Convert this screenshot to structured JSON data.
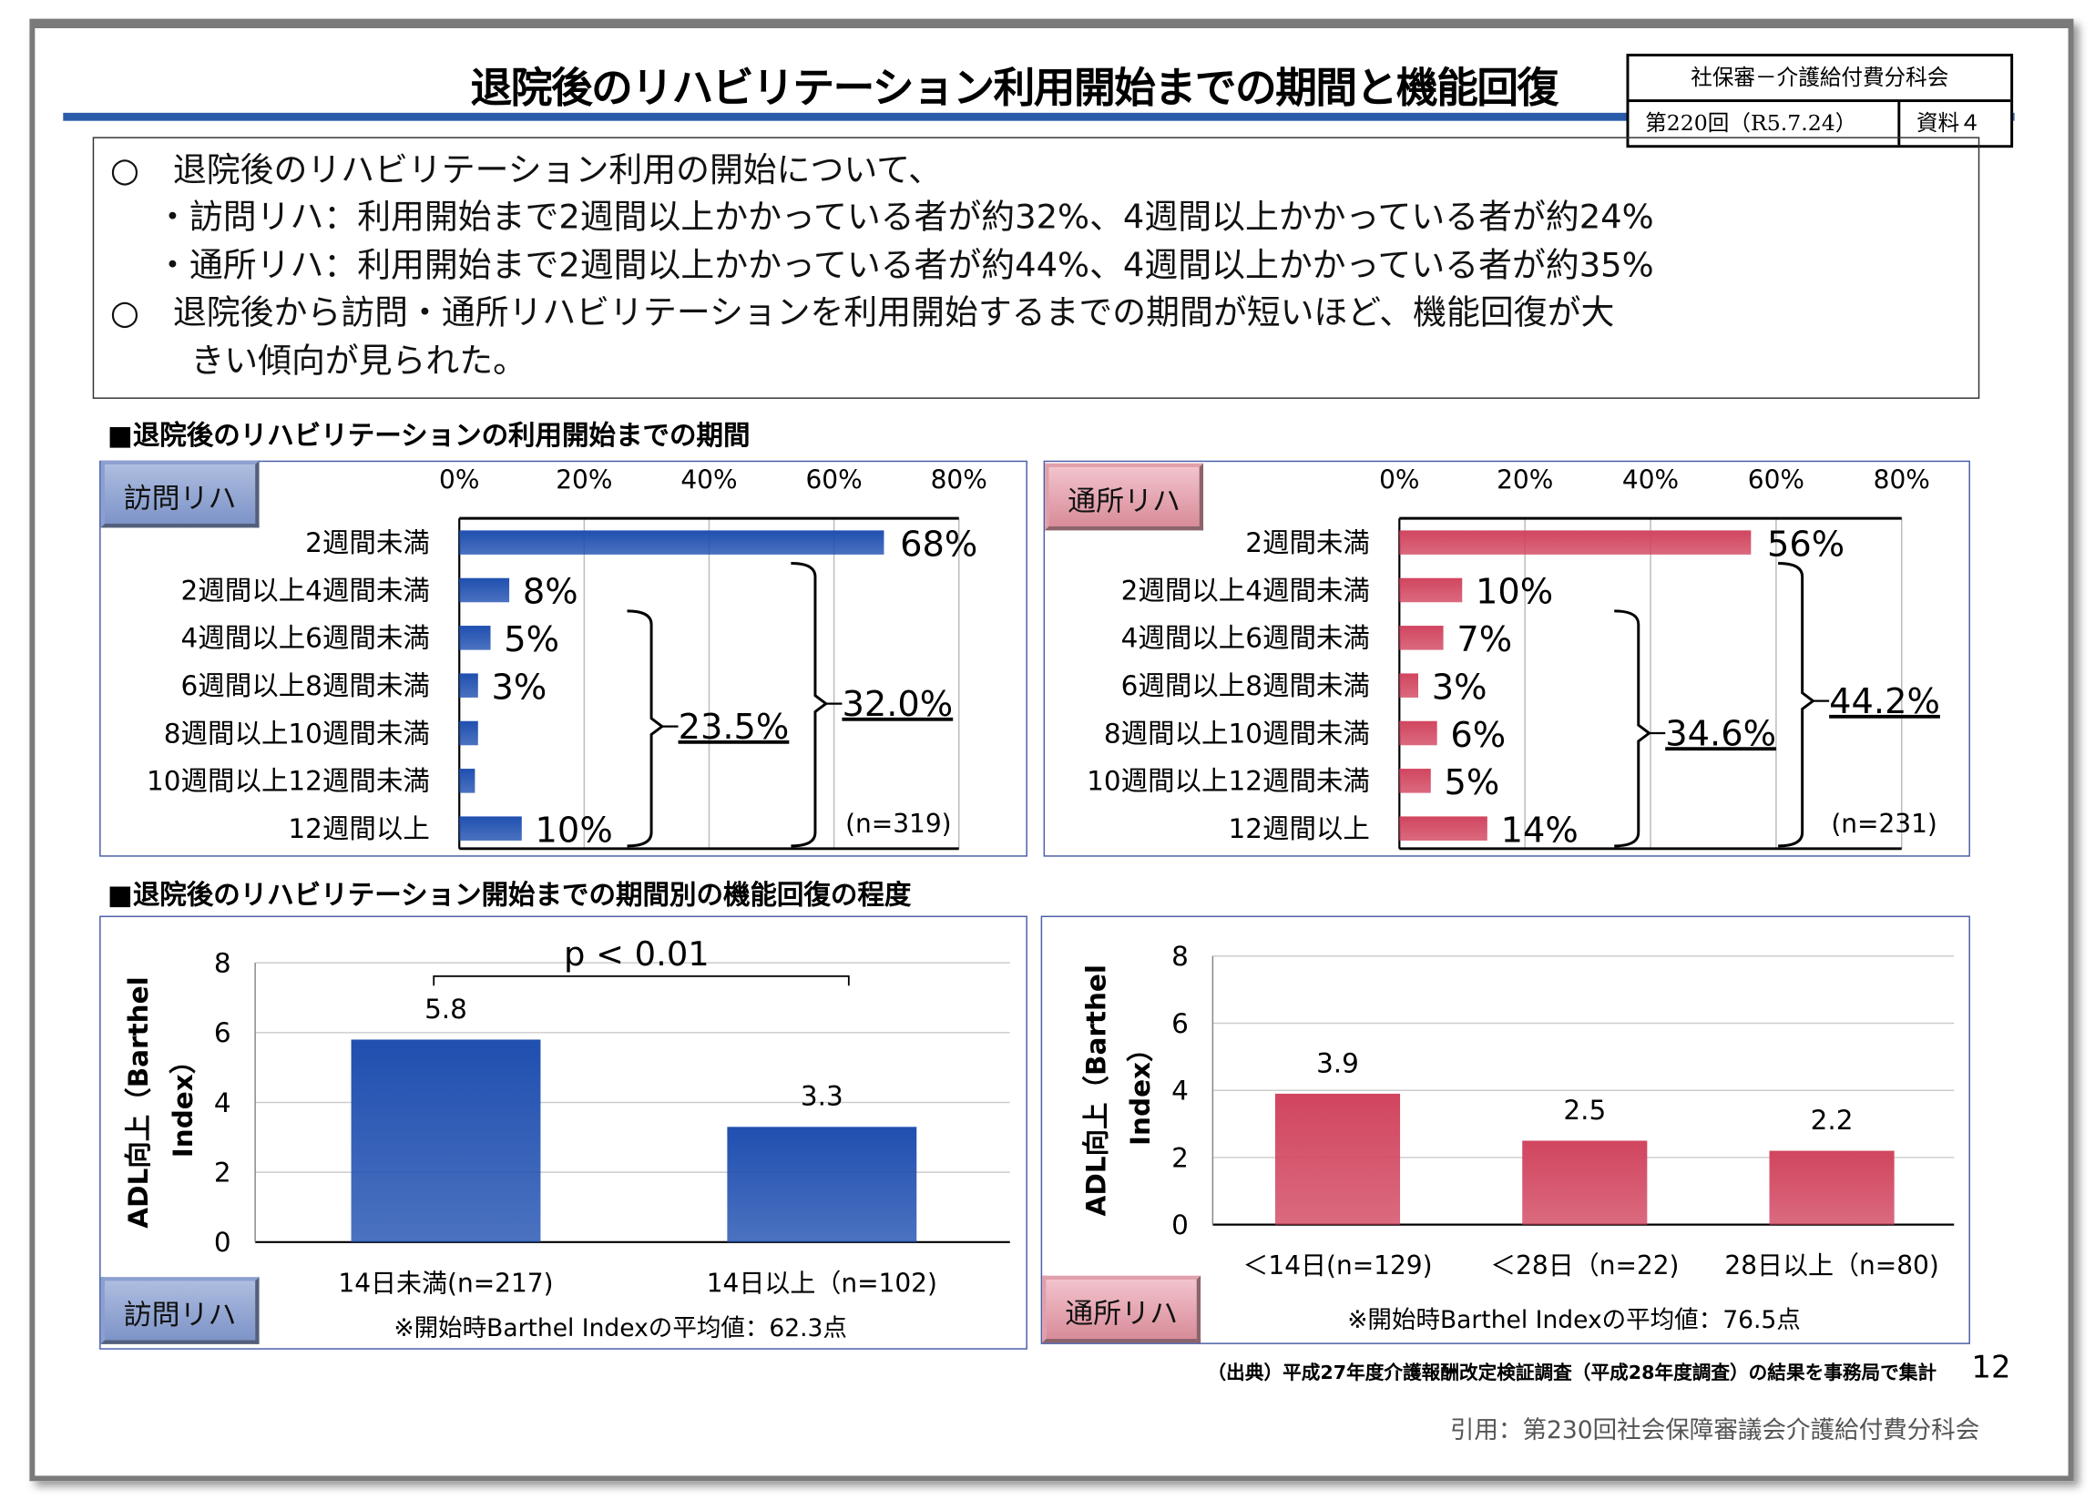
{
  "header": {
    "title": "退院後のリハビリテーション利用開始までの期間と機能回復",
    "meta_top": "社保審－介護給付費分科会",
    "meta_session": "第220回（R5.7.24）",
    "meta_doc": "資料４"
  },
  "summary": {
    "lines": [
      "○　退院後のリハビリテーション利用の開始について、",
      "・訪問リハ：利用開始まで2週間以上かかっている者が約32%、4週間以上かかっている者が約24%",
      "・通所リハ：利用開始まで2週間以上かかっている者が約44%、4週間以上かかっている者が約35%",
      "○　退院後から訪問・通所リハビリテーションを利用開始するまでの期間が短いほど、機能回復が大",
      "きい傾向が見られた。"
    ]
  },
  "section1": "■退院後のリハビリテーションの利用開始までの期間",
  "section2": "■退院後のリハビリテーション開始までの期間別の機能回復の程度",
  "colors": {
    "blue": "#1f4fb0",
    "red": "#d1455f"
  },
  "chart_data": [
    {
      "type": "bar",
      "orientation": "horizontal",
      "tab": "訪問リハ",
      "color": "#1f4fb0",
      "xlim": [
        0,
        80
      ],
      "xticks": [
        "0%",
        "20%",
        "40%",
        "60%",
        "80%"
      ],
      "grid": true,
      "categories": [
        "2週間未満",
        "2週間以上4週間未満",
        "4週間以上6週間未満",
        "6週間以上8週間未満",
        "8週間以上10週間未満",
        "10週間以上12週間未満",
        "12週間以上"
      ],
      "values": [
        68,
        8,
        5,
        3,
        3,
        2.5,
        10
      ],
      "labels": [
        "68%",
        "8%",
        "5%",
        "3%",
        "",
        "",
        "10%"
      ],
      "brackets": [
        {
          "label": "23.5%",
          "from": 2,
          "to": 6
        },
        {
          "label": "32.0%",
          "from": 1,
          "to": 6
        }
      ],
      "n": "(n=319)"
    },
    {
      "type": "bar",
      "orientation": "horizontal",
      "tab": "通所リハ",
      "color": "#d1455f",
      "xlim": [
        0,
        80
      ],
      "xticks": [
        "0%",
        "20%",
        "40%",
        "60%",
        "80%"
      ],
      "grid": true,
      "categories": [
        "2週間未満",
        "2週間以上4週間未満",
        "4週間以上6週間未満",
        "6週間以上8週間未満",
        "8週間以上10週間未満",
        "10週間以上12週間未満",
        "12週間以上"
      ],
      "values": [
        56,
        10,
        7,
        3,
        6,
        5,
        14
      ],
      "labels": [
        "56%",
        "10%",
        "7%",
        "3%",
        "6%",
        "5%",
        "14%"
      ],
      "brackets": [
        {
          "label": "34.6%",
          "from": 2,
          "to": 6
        },
        {
          "label": "44.2%",
          "from": 1,
          "to": 6
        }
      ],
      "n": "(n=231)"
    },
    {
      "type": "bar",
      "tab": "訪問リハ",
      "color": "#1f4fb0",
      "ylim": [
        0,
        8
      ],
      "yticks": [
        "0",
        "2",
        "4",
        "6",
        "8"
      ],
      "grid": true,
      "ylabel": [
        "ADL向上（Barthel",
        "Index）"
      ],
      "categories": [
        "14日未満(n=217)",
        "14日以上（n=102)"
      ],
      "values": [
        5.8,
        3.3
      ],
      "labels": [
        "5.8",
        "3.3"
      ],
      "annotation": "p < 0.01",
      "note": "※開始時Barthel Indexの平均値：62.3点"
    },
    {
      "type": "bar",
      "tab": "通所リハ",
      "color": "#d1455f",
      "ylim": [
        0,
        8
      ],
      "yticks": [
        "0",
        "2",
        "4",
        "6",
        "8"
      ],
      "grid": true,
      "ylabel": [
        "ADL向上（Barthel",
        "Index）"
      ],
      "categories": [
        "＜14日(n=129)",
        "＜28日（n=22)",
        "28日以上（n=80)"
      ],
      "values": [
        3.9,
        2.5,
        2.2
      ],
      "labels": [
        "3.9",
        "2.5",
        "2.2"
      ],
      "note": "※開始時Barthel Indexの平均値：76.5点"
    }
  ],
  "footer": {
    "source": "（出典）平成27年度介護報酬改定検証調査（平成28年度調査）の結果を事務局で集計",
    "page": "12",
    "citation": "引用：第230回社会保障審議会介護給付費分科会"
  }
}
